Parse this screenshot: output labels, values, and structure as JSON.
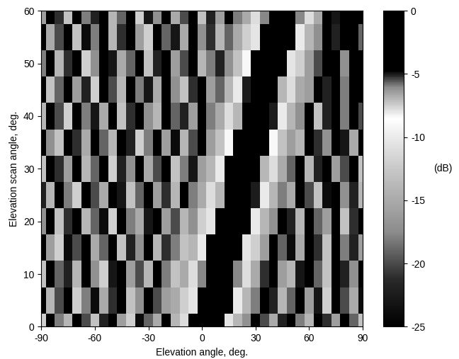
{
  "chart_data": {
    "type": "heatmap",
    "x_label": "Elevation angle, deg.",
    "y_label": "Elevation scan angle, deg.",
    "z_label": "(dB)",
    "x": [
      -90,
      -85,
      -80,
      -75,
      -70,
      -65,
      -60,
      -55,
      -50,
      -45,
      -40,
      -35,
      -30,
      -25,
      -20,
      -15,
      -10,
      -5,
      0,
      5,
      10,
      15,
      20,
      25,
      30,
      35,
      40,
      45,
      50,
      55,
      60,
      65,
      70,
      75,
      80,
      85,
      90
    ],
    "y": [
      0,
      5,
      10,
      15,
      20,
      25,
      30,
      35,
      40,
      45,
      50,
      55,
      60
    ],
    "values": [
      [
        -12,
        -25,
        -18,
        -14,
        -25,
        -20,
        -13,
        -22,
        -25,
        -16,
        -12,
        -24,
        -19,
        -15,
        -25,
        -14,
        -11,
        -4,
        0,
        0,
        -4,
        -8,
        -14,
        -17,
        -25,
        -20,
        -15,
        -22,
        -25,
        -18,
        -14,
        -25,
        -21,
        -16,
        -25,
        -19,
        -13
      ],
      [
        -25,
        -14,
        -20,
        -25,
        -12,
        -18,
        -24,
        -15,
        -21,
        -25,
        -13,
        -17,
        -25,
        -20,
        -16,
        -15,
        -12,
        -8,
        -2,
        0,
        0,
        -4,
        -10,
        -14,
        -18,
        -25,
        -22,
        -14,
        -19,
        -25,
        -16,
        -23,
        -12,
        -25,
        -20,
        -15,
        -24
      ],
      [
        -13,
        -25,
        -19,
        -22,
        -14,
        -25,
        -17,
        -12,
        -23,
        -25,
        -16,
        -20,
        -14,
        -25,
        -18,
        -13,
        -15,
        -11,
        -6,
        -1,
        0,
        -1,
        -6,
        -11,
        -15,
        -21,
        -25,
        -16,
        -14,
        -23,
        -25,
        -19,
        -13,
        -25,
        -22,
        -17,
        -25
      ],
      [
        -25,
        -16,
        -12,
        -24,
        -20,
        -25,
        -15,
        -19,
        -25,
        -13,
        -22,
        -17,
        -25,
        -14,
        -21,
        -18,
        -13,
        -14,
        -10,
        -4,
        -1,
        0,
        -2,
        -8,
        -12,
        -16,
        -25,
        -19,
        -24,
        -15,
        -25,
        -21,
        -13,
        -25,
        -18,
        -22,
        -16
      ],
      [
        -17,
        -25,
        -13,
        -21,
        -25,
        -14,
        -19,
        -24,
        -12,
        -25,
        -18,
        -15,
        -23,
        -25,
        -16,
        -20,
        -14,
        -17,
        -12,
        -8,
        -2,
        0,
        0,
        -4,
        -10,
        -14,
        -17,
        -25,
        -22,
        -14,
        -25,
        -19,
        -16,
        -25,
        -13,
        -21,
        -25
      ],
      [
        -22,
        -14,
        -25,
        -18,
        -12,
        -25,
        -20,
        -15,
        -25,
        -23,
        -13,
        -19,
        -25,
        -16,
        -21,
        -14,
        -25,
        -18,
        -15,
        -11,
        -7,
        -1,
        0,
        -1,
        -5,
        -10,
        -14,
        -18,
        -15,
        -25,
        -20,
        -13,
        -24,
        -25,
        -17,
        -22,
        -14
      ],
      [
        -13,
        -25,
        -21,
        -16,
        -25,
        -14,
        -19,
        -25,
        -12,
        -22,
        -17,
        -25,
        -15,
        -20,
        -25,
        -13,
        -18,
        -23,
        -16,
        -14,
        -10,
        -4,
        -1,
        0,
        -2,
        -7,
        -11,
        -15,
        -19,
        -25,
        -14,
        -22,
        -25,
        -16,
        -20,
        -25,
        -13
      ],
      [
        -25,
        -17,
        -13,
        -25,
        -21,
        -15,
        -25,
        -19,
        -14,
        -25,
        -22,
        -12,
        -18,
        -25,
        -16,
        -24,
        -14,
        -20,
        -25,
        -16,
        -13,
        -9,
        -3,
        0,
        0,
        -3,
        -9,
        -13,
        -16,
        -14,
        -25,
        -21,
        -17,
        -25,
        -23,
        -15,
        -25
      ],
      [
        -14,
        -25,
        -20,
        -12,
        -25,
        -18,
        -23,
        -15,
        -25,
        -13,
        -21,
        -25,
        -17,
        -14,
        -25,
        -19,
        -22,
        -16,
        -25,
        -18,
        -15,
        -11,
        -7,
        -1,
        0,
        0,
        -5,
        -10,
        -14,
        -17,
        -25,
        -13,
        -22,
        -25,
        -18,
        -25,
        -20
      ],
      [
        -25,
        -13,
        -19,
        -25,
        -16,
        -22,
        -12,
        -25,
        -20,
        -14,
        -25,
        -18,
        -23,
        -15,
        -25,
        -17,
        -13,
        -21,
        -25,
        -16,
        -19,
        -14,
        -10,
        -5,
        -1,
        0,
        -1,
        -7,
        -11,
        -15,
        -16,
        -25,
        -22,
        -25,
        -18,
        -25,
        -25
      ],
      [
        -18,
        -25,
        -14,
        -21,
        -25,
        -12,
        -17,
        -25,
        -23,
        -15,
        -19,
        -25,
        -13,
        -22,
        -25,
        -16,
        -20,
        -25,
        -14,
        -18,
        -22,
        -17,
        -13,
        -9,
        -3,
        0,
        0,
        -3,
        -8,
        -12,
        -16,
        -20,
        -25,
        -25,
        -17,
        -25,
        -25
      ],
      [
        -25,
        -15,
        -20,
        -25,
        -13,
        -24,
        -18,
        -25,
        -14,
        -21,
        -25,
        -16,
        -12,
        -25,
        -19,
        -23,
        -15,
        -25,
        -17,
        -21,
        -14,
        -19,
        -15,
        -12,
        -8,
        -2,
        0,
        0,
        -4,
        -10,
        -14,
        -17,
        -25,
        -22,
        -25,
        -25,
        -19
      ],
      [
        -16,
        -25,
        -21,
        -13,
        -25,
        -18,
        -22,
        -25,
        -14,
        -19,
        -25,
        -12,
        -23,
        -17,
        -25,
        -15,
        -20,
        -25,
        -13,
        -22,
        -16,
        -25,
        -18,
        -15,
        -11,
        -6,
        -1,
        0,
        -1,
        -6,
        -11,
        -15,
        -25,
        -23,
        -25,
        -25,
        -25
      ]
    ],
    "xlim": [
      -90,
      90
    ],
    "ylim": [
      0,
      60
    ],
    "xticks": [
      -90,
      -60,
      -30,
      0,
      30,
      60,
      90
    ],
    "yticks": [
      0,
      10,
      20,
      30,
      40,
      50,
      60
    ],
    "zlim": [
      -25,
      0
    ],
    "zticks": [
      0,
      -5,
      -10,
      -15,
      -20,
      -25
    ]
  }
}
